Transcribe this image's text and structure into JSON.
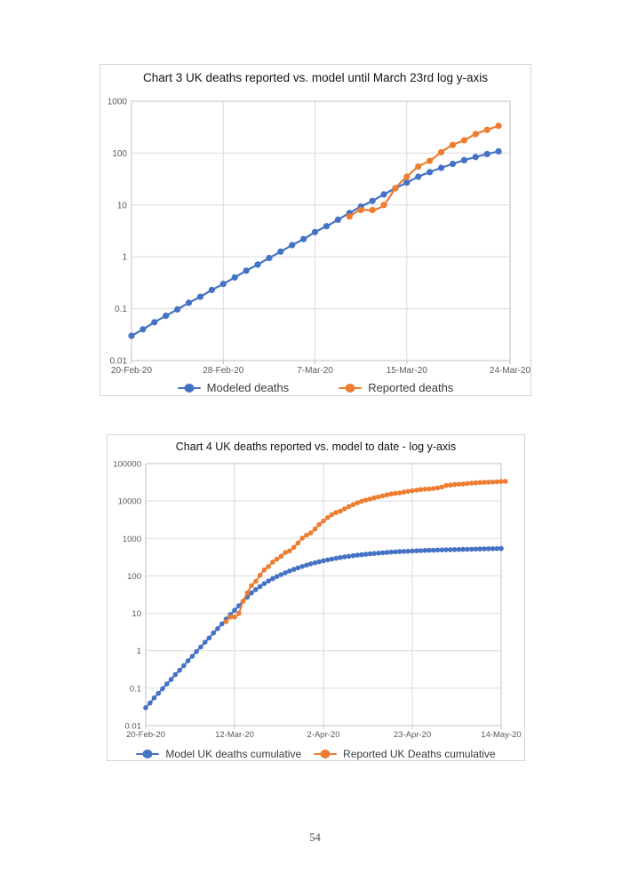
{
  "page": {
    "number": "54"
  },
  "colors": {
    "model_blue": "#4472C4",
    "reported_orange": "#ED7D31",
    "gridline": "#DBDBDB",
    "plot_border": "#C2C2C2",
    "axis_text": "#595959"
  },
  "chart_data": [
    {
      "id": "chart3",
      "type": "line",
      "title": "Chart 3 UK deaths reported vs. model until March 23rd log y-axis",
      "y_scale": "log",
      "ylim": [
        0.01,
        1000
      ],
      "y_tick_labels": [
        "1000",
        "100",
        "10",
        "1",
        "0.1",
        "0.01"
      ],
      "x_tick_labels": [
        "20-Feb-20",
        "28-Feb-20",
        "7-Mar-20",
        "15-Mar-20",
        "24-Mar-20"
      ],
      "x_tick_days": [
        0,
        8,
        16,
        24,
        33
      ],
      "x_range_days": [
        0,
        33
      ],
      "grid": true,
      "legend_position": "bottom",
      "series": [
        {
          "name": "Modeled deaths",
          "color": "#4472C4",
          "start_day": 0,
          "start_date": "20-Feb-20",
          "values": [
            0.03,
            0.04,
            0.055,
            0.073,
            0.097,
            0.13,
            0.17,
            0.23,
            0.3,
            0.4,
            0.54,
            0.71,
            0.95,
            1.26,
            1.68,
            2.2,
            3.0,
            3.9,
            5.2,
            7.0,
            9.3,
            12,
            16,
            21,
            27,
            35,
            43,
            52,
            62,
            73,
            84,
            96,
            108
          ]
        },
        {
          "name": "Reported deaths",
          "color": "#ED7D31",
          "start_day": 19,
          "start_date": "10-Mar-20",
          "values": [
            6,
            8,
            8,
            10,
            21,
            35,
            55,
            71,
            104,
            144,
            177,
            233,
            281,
            335
          ]
        }
      ]
    },
    {
      "id": "chart4",
      "type": "line",
      "title": "Chart 4 UK deaths reported vs. model to date - log y-axis",
      "y_scale": "log",
      "ylim": [
        0.01,
        100000
      ],
      "y_tick_labels": [
        "100000",
        "10000",
        "1000",
        "100",
        "10",
        "1",
        "0.1",
        "0.01"
      ],
      "x_tick_labels": [
        "20-Feb-20",
        "12-Mar-20",
        "2-Apr-20",
        "23-Apr-20",
        "14-May-20"
      ],
      "x_tick_days": [
        0,
        21,
        42,
        63,
        84
      ],
      "x_range_days": [
        0,
        84
      ],
      "grid": true,
      "legend_position": "bottom",
      "series": [
        {
          "name": "Model UK deaths cumulative",
          "color": "#4472C4",
          "start_day": 0,
          "start_date": "20-Feb-20",
          "values": [
            0.03,
            0.04,
            0.055,
            0.073,
            0.097,
            0.13,
            0.17,
            0.23,
            0.3,
            0.4,
            0.54,
            0.71,
            0.95,
            1.26,
            1.68,
            2.2,
            3.0,
            3.9,
            5.2,
            7.0,
            9.3,
            12,
            16,
            21,
            27,
            35,
            43,
            52,
            62,
            73,
            84,
            96,
            108,
            121,
            135,
            149,
            164,
            179,
            194,
            209,
            224,
            239,
            254,
            268,
            282,
            296,
            309,
            322,
            334,
            346,
            357,
            368,
            378,
            388,
            397,
            406,
            414,
            422,
            430,
            437,
            444,
            450,
            456,
            462,
            467,
            472,
            477,
            482,
            486,
            490,
            494,
            498,
            502,
            505,
            508,
            511,
            514,
            517,
            520,
            523,
            526,
            529,
            532,
            535,
            538
          ]
        },
        {
          "name": "Reported UK Deaths cumulative",
          "color": "#ED7D31",
          "start_day": 19,
          "start_date": "10-Mar-20",
          "values": [
            6,
            8,
            8,
            10,
            21,
            35,
            55,
            71,
            104,
            144,
            177,
            233,
            281,
            335,
            422,
            465,
            578,
            759,
            1019,
            1228,
            1408,
            1789,
            2352,
            2921,
            3605,
            4313,
            4934,
            5373,
            6159,
            7097,
            7978,
            8958,
            9875,
            10612,
            11329,
            12107,
            12868,
            13729,
            14576,
            15464,
            16060,
            16509,
            17337,
            18100,
            18738,
            19506,
            20319,
            20732,
            21092,
            21678,
            22334,
            23635,
            26097,
            26711,
            27510,
            28131,
            28446,
            29427,
            30076,
            30615,
            31241,
            31587,
            31855,
            32065,
            32692,
            33186,
            33614
          ]
        }
      ]
    }
  ]
}
